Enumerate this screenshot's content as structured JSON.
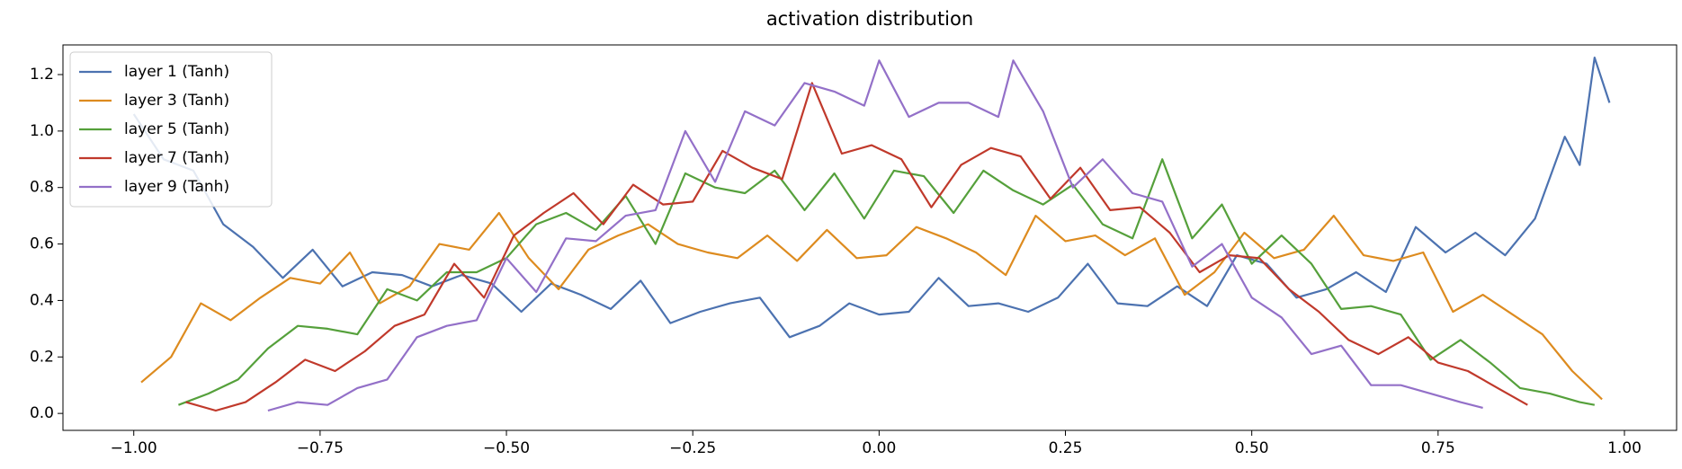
{
  "chart_data": {
    "type": "line",
    "title": "activation distribution",
    "xlim": [
      -1.095,
      1.07
    ],
    "ylim": [
      -0.06,
      1.305
    ],
    "xticks": [
      {
        "value": -1,
        "label": "−1.00"
      },
      {
        "value": -0.75,
        "label": "−0.75"
      },
      {
        "value": -0.5,
        "label": "−0.50"
      },
      {
        "value": -0.25,
        "label": "−0.25"
      },
      {
        "value": 0,
        "label": "0.00"
      },
      {
        "value": 0.25,
        "label": "0.25"
      },
      {
        "value": 0.5,
        "label": "0.50"
      },
      {
        "value": 0.75,
        "label": "0.75"
      },
      {
        "value": 1,
        "label": "1.00"
      }
    ],
    "yticks": [
      {
        "value": 0,
        "label": "0.0"
      },
      {
        "value": 0.2,
        "label": "0.2"
      },
      {
        "value": 0.4,
        "label": "0.4"
      },
      {
        "value": 0.6,
        "label": "0.6"
      },
      {
        "value": 0.8,
        "label": "0.8"
      },
      {
        "value": 1,
        "label": "1.0"
      },
      {
        "value": 1.2,
        "label": "1.2"
      }
    ],
    "legend": "upper left",
    "series": [
      {
        "name": "layer 1 (Tanh)",
        "color": "#4c72b0",
        "x": [
          -1.0,
          -0.96,
          -0.92,
          -0.88,
          -0.84,
          -0.8,
          -0.76,
          -0.72,
          -0.68,
          -0.64,
          -0.6,
          -0.56,
          -0.52,
          -0.48,
          -0.44,
          -0.4,
          -0.36,
          -0.32,
          -0.28,
          -0.24,
          -0.2,
          -0.16,
          -0.12,
          -0.08,
          -0.04,
          0.0,
          0.04,
          0.08,
          0.12,
          0.16,
          0.2,
          0.24,
          0.28,
          0.32,
          0.36,
          0.4,
          0.44,
          0.48,
          0.52,
          0.56,
          0.6,
          0.64,
          0.68,
          0.72,
          0.76,
          0.8,
          0.84,
          0.88,
          0.92,
          0.94,
          0.96,
          0.98
        ],
        "values": [
          1.06,
          0.9,
          0.86,
          0.67,
          0.59,
          0.48,
          0.58,
          0.45,
          0.5,
          0.49,
          0.45,
          0.49,
          0.46,
          0.36,
          0.46,
          0.42,
          0.37,
          0.47,
          0.32,
          0.36,
          0.39,
          0.41,
          0.27,
          0.31,
          0.39,
          0.35,
          0.36,
          0.48,
          0.38,
          0.39,
          0.36,
          0.41,
          0.53,
          0.39,
          0.38,
          0.45,
          0.38,
          0.56,
          0.53,
          0.41,
          0.44,
          0.5,
          0.43,
          0.66,
          0.57,
          0.64,
          0.56,
          0.69,
          0.98,
          0.88,
          1.26,
          1.1
        ]
      },
      {
        "name": "layer 3 (Tanh)",
        "color": "#dd8b1f",
        "x": [
          -0.99,
          -0.95,
          -0.91,
          -0.87,
          -0.83,
          -0.79,
          -0.75,
          -0.71,
          -0.67,
          -0.63,
          -0.59,
          -0.55,
          -0.51,
          -0.47,
          -0.43,
          -0.39,
          -0.35,
          -0.31,
          -0.27,
          -0.23,
          -0.19,
          -0.15,
          -0.11,
          -0.07,
          -0.03,
          0.01,
          0.05,
          0.09,
          0.13,
          0.17,
          0.21,
          0.25,
          0.29,
          0.33,
          0.37,
          0.41,
          0.45,
          0.49,
          0.53,
          0.57,
          0.61,
          0.65,
          0.69,
          0.73,
          0.77,
          0.81,
          0.85,
          0.89,
          0.93,
          0.97
        ],
        "values": [
          0.11,
          0.2,
          0.39,
          0.33,
          0.41,
          0.48,
          0.46,
          0.57,
          0.39,
          0.45,
          0.6,
          0.58,
          0.71,
          0.55,
          0.44,
          0.58,
          0.63,
          0.67,
          0.6,
          0.57,
          0.55,
          0.63,
          0.54,
          0.65,
          0.55,
          0.56,
          0.66,
          0.62,
          0.57,
          0.49,
          0.7,
          0.61,
          0.63,
          0.56,
          0.62,
          0.42,
          0.5,
          0.64,
          0.55,
          0.58,
          0.7,
          0.56,
          0.54,
          0.57,
          0.36,
          0.42,
          0.35,
          0.28,
          0.15,
          0.05
        ]
      },
      {
        "name": "layer 5 (Tanh)",
        "color": "#55a03b",
        "x": [
          -0.94,
          -0.9,
          -0.86,
          -0.82,
          -0.78,
          -0.74,
          -0.7,
          -0.66,
          -0.62,
          -0.58,
          -0.54,
          -0.5,
          -0.46,
          -0.42,
          -0.38,
          -0.34,
          -0.3,
          -0.26,
          -0.22,
          -0.18,
          -0.14,
          -0.1,
          -0.06,
          -0.02,
          0.02,
          0.06,
          0.1,
          0.14,
          0.18,
          0.22,
          0.26,
          0.3,
          0.34,
          0.38,
          0.42,
          0.46,
          0.5,
          0.54,
          0.58,
          0.62,
          0.66,
          0.7,
          0.74,
          0.78,
          0.82,
          0.86,
          0.9,
          0.94,
          0.96
        ],
        "values": [
          0.03,
          0.07,
          0.12,
          0.23,
          0.31,
          0.3,
          0.28,
          0.44,
          0.4,
          0.5,
          0.5,
          0.55,
          0.67,
          0.71,
          0.65,
          0.77,
          0.6,
          0.85,
          0.8,
          0.78,
          0.86,
          0.72,
          0.85,
          0.69,
          0.86,
          0.84,
          0.71,
          0.86,
          0.79,
          0.74,
          0.81,
          0.67,
          0.62,
          0.9,
          0.62,
          0.74,
          0.53,
          0.63,
          0.53,
          0.37,
          0.38,
          0.35,
          0.19,
          0.26,
          0.18,
          0.09,
          0.07,
          0.04,
          0.03
        ]
      },
      {
        "name": "layer 7 (Tanh)",
        "color": "#c0392b",
        "x": [
          -0.93,
          -0.89,
          -0.85,
          -0.81,
          -0.77,
          -0.73,
          -0.69,
          -0.65,
          -0.61,
          -0.57,
          -0.53,
          -0.49,
          -0.45,
          -0.41,
          -0.37,
          -0.33,
          -0.29,
          -0.25,
          -0.21,
          -0.17,
          -0.13,
          -0.09,
          -0.05,
          -0.01,
          0.03,
          0.07,
          0.11,
          0.15,
          0.19,
          0.23,
          0.27,
          0.31,
          0.35,
          0.39,
          0.43,
          0.47,
          0.51,
          0.55,
          0.59,
          0.63,
          0.67,
          0.71,
          0.75,
          0.79,
          0.83,
          0.87
        ],
        "values": [
          0.04,
          0.01,
          0.04,
          0.11,
          0.19,
          0.15,
          0.22,
          0.31,
          0.35,
          0.53,
          0.41,
          0.63,
          0.71,
          0.78,
          0.67,
          0.81,
          0.74,
          0.75,
          0.93,
          0.87,
          0.83,
          1.17,
          0.92,
          0.95,
          0.9,
          0.73,
          0.88,
          0.94,
          0.91,
          0.76,
          0.87,
          0.72,
          0.73,
          0.64,
          0.5,
          0.56,
          0.55,
          0.44,
          0.36,
          0.26,
          0.21,
          0.27,
          0.18,
          0.15,
          0.09,
          0.03
        ]
      },
      {
        "name": "layer 9 (Tanh)",
        "color": "#9370c8",
        "x": [
          -0.82,
          -0.78,
          -0.74,
          -0.7,
          -0.66,
          -0.62,
          -0.58,
          -0.54,
          -0.5,
          -0.46,
          -0.42,
          -0.38,
          -0.34,
          -0.3,
          -0.26,
          -0.22,
          -0.18,
          -0.14,
          -0.1,
          -0.06,
          -0.02,
          0.0,
          0.04,
          0.08,
          0.12,
          0.16,
          0.18,
          0.22,
          0.26,
          0.3,
          0.34,
          0.38,
          0.42,
          0.46,
          0.5,
          0.54,
          0.58,
          0.62,
          0.66,
          0.7,
          0.74,
          0.78,
          0.81
        ],
        "values": [
          0.01,
          0.04,
          0.03,
          0.09,
          0.12,
          0.27,
          0.31,
          0.33,
          0.55,
          0.43,
          0.62,
          0.61,
          0.7,
          0.72,
          1.0,
          0.82,
          1.07,
          1.02,
          1.17,
          1.14,
          1.09,
          1.25,
          1.05,
          1.1,
          1.1,
          1.05,
          1.25,
          1.07,
          0.8,
          0.9,
          0.78,
          0.75,
          0.52,
          0.6,
          0.41,
          0.34,
          0.21,
          0.24,
          0.1,
          0.1,
          0.07,
          0.04,
          0.02
        ]
      }
    ]
  }
}
